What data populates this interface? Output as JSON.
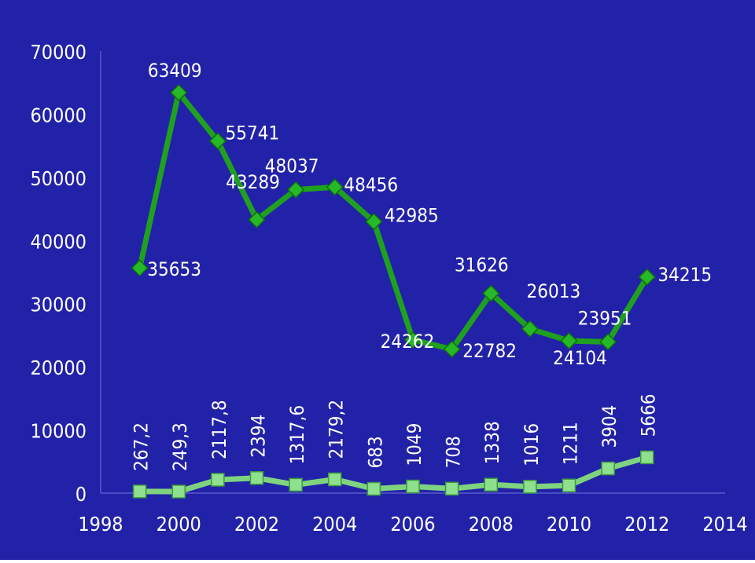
{
  "chart_data": {
    "type": "line",
    "background_color": "#2222a8",
    "x": [
      1999,
      2000,
      2001,
      2002,
      2003,
      2004,
      2005,
      2006,
      2007,
      2008,
      2009,
      2010,
      2011,
      2012
    ],
    "xlim": [
      1998,
      2014
    ],
    "ylim": [
      0,
      70000
    ],
    "x_ticks": [
      "1998",
      "2000",
      "2002",
      "2004",
      "2006",
      "2008",
      "2010",
      "2012",
      "2014"
    ],
    "y_ticks": [
      "0",
      "10000",
      "20000",
      "30000",
      "40000",
      "50000",
      "60000",
      "70000"
    ],
    "grid": false,
    "legend": "none",
    "series": [
      {
        "color": "#1fa01f",
        "marker": "diamond",
        "values": [
          35653,
          63409,
          55741,
          43289,
          48037,
          48456,
          42985,
          24262,
          22782,
          31626,
          26013,
          24104,
          23951,
          34215
        ],
        "labels": [
          "35653",
          "63409",
          "55741",
          "43289",
          "48037",
          "48456",
          "42985",
          "24262",
          "22782",
          "31626",
          "26013",
          "24104",
          "23951",
          "34215"
        ]
      },
      {
        "color": "#7fd37f",
        "marker": "square",
        "values": [
          267.2,
          249.3,
          2117.8,
          2394,
          1317.6,
          2179.2,
          683,
          1049,
          708,
          1338,
          1016,
          1211,
          3904,
          5666
        ],
        "labels": [
          "267,2",
          "249,3",
          "2117,8",
          "2394",
          "1317,6",
          "2179,2",
          "683",
          "1049",
          "708",
          "1338",
          "1016",
          "1211",
          "3904",
          "5666"
        ]
      }
    ]
  }
}
